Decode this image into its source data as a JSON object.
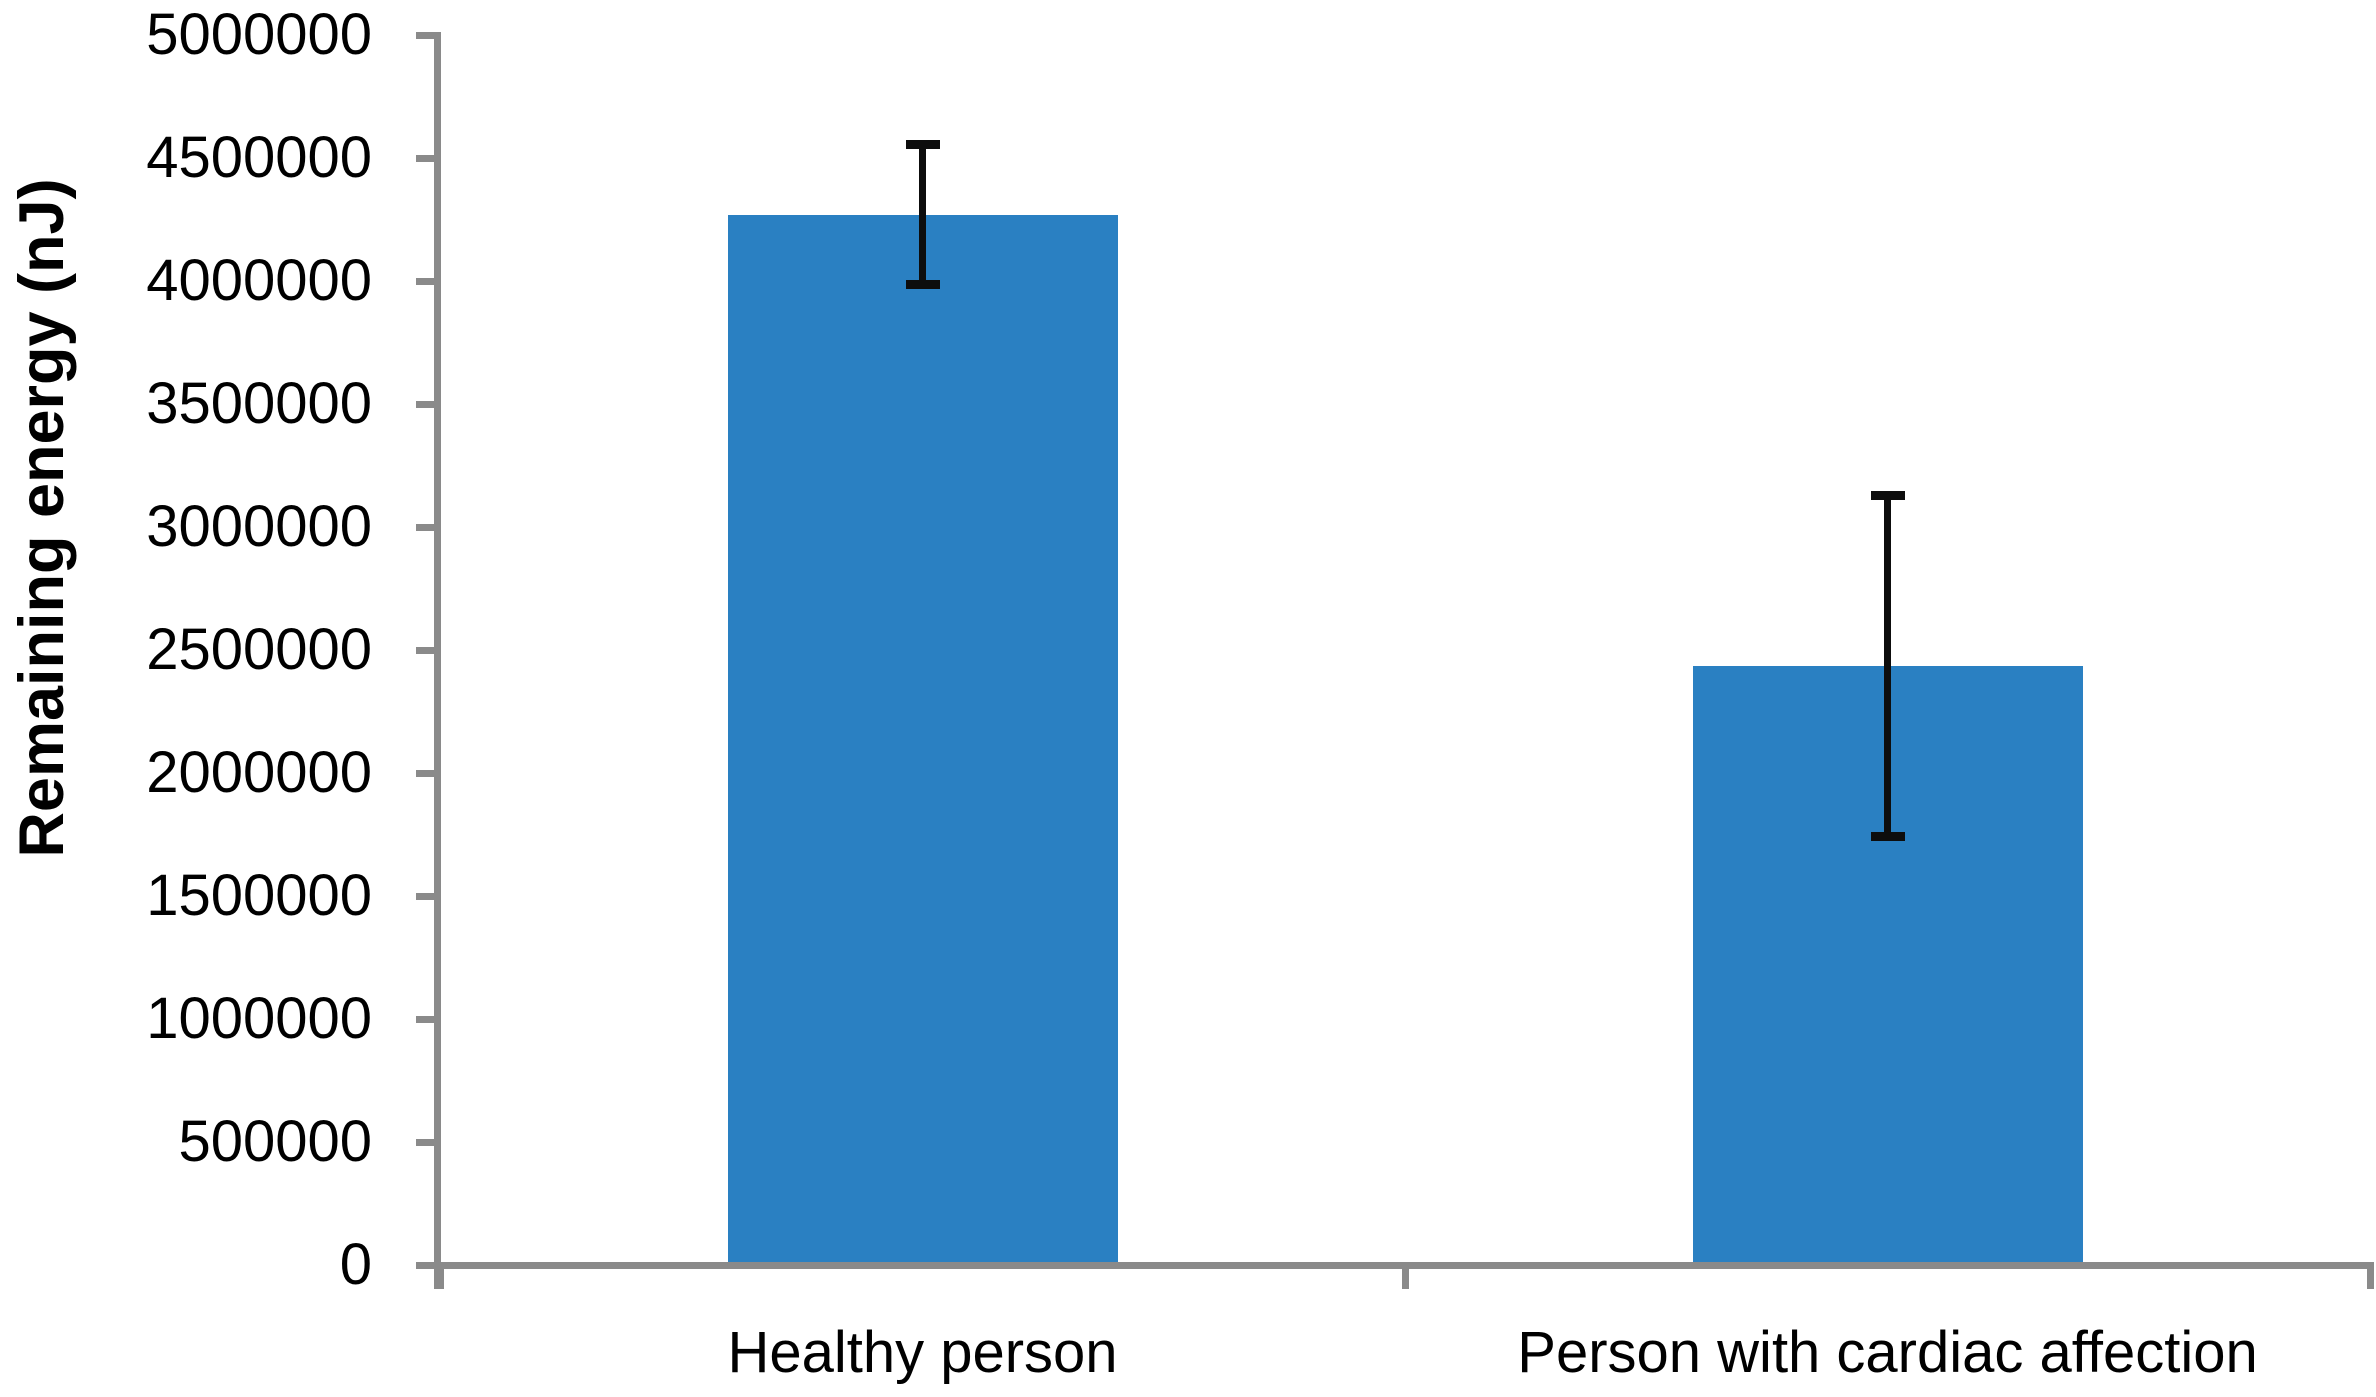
{
  "chart_data": {
    "type": "bar",
    "title": "",
    "xlabel": "",
    "ylabel": "Remaining energy (nJ)",
    "categories": [
      "Healthy person",
      "Person with cardiac affection"
    ],
    "values": [
      4270000,
      2435000
    ],
    "error_bars": {
      "plus": [
        285000,
        695000
      ],
      "minus": [
        285000,
        695000
      ]
    },
    "ylim": [
      0,
      5000000
    ],
    "ytick_step": 500000,
    "ytick_labels": [
      "0",
      "500000",
      "1000000",
      "1500000",
      "2000000",
      "2500000",
      "3000000",
      "3500000",
      "4000000",
      "4500000",
      "5000000"
    ],
    "grid": false,
    "legend": false,
    "colors": {
      "bar_fill": "#2a80c2",
      "axis_line": "#8a8a8a",
      "error_bar": "#0d0d0d",
      "text": "#000000",
      "background": "#ffffff"
    }
  }
}
